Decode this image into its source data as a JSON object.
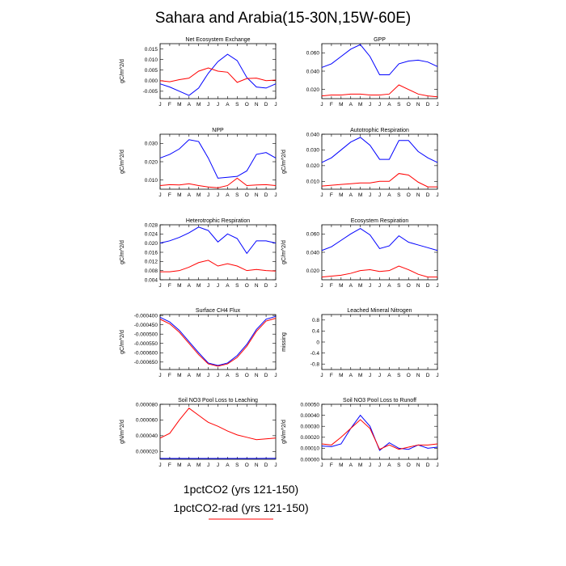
{
  "figure": {
    "title": "Sahara and Arabia(15-30N,15W-60E)",
    "month_labels": [
      "J",
      "F",
      "M",
      "A",
      "M",
      "J",
      "J",
      "A",
      "S",
      "O",
      "N",
      "D",
      "J"
    ]
  },
  "legend": {
    "items": [
      {
        "label": "1pctCO2 (yrs 121-150)",
        "color": "#0000ff"
      },
      {
        "label": "1pctCO2-rad (yrs 121-150)",
        "color": "#ff0000"
      }
    ]
  },
  "colors": {
    "series_a": "#0000ff",
    "series_b": "#ff0000",
    "axes": "#000000"
  },
  "chart_data": [
    {
      "type": "line",
      "title": "Net Ecosystem Exchange",
      "ylabel": "gC/m^2/d",
      "ylim": [
        -0.0085,
        0.0175
      ],
      "yticks": [
        -0.005,
        0.0,
        0.005,
        0.01,
        0.015
      ],
      "yticklabels": [
        "-0.005",
        "0.000",
        "0.005",
        "0.010",
        "0.015"
      ],
      "x": [
        "J",
        "F",
        "M",
        "A",
        "M",
        "J",
        "J",
        "A",
        "S",
        "O",
        "N",
        "D",
        "J"
      ],
      "series": [
        {
          "color": "#0000ff",
          "values": [
            -0.0015,
            -0.003,
            -0.005,
            -0.007,
            -0.0035,
            0.0035,
            0.009,
            0.0125,
            0.0095,
            0.0015,
            -0.003,
            -0.0035,
            -0.0015
          ]
        },
        {
          "color": "#ff0000",
          "values": [
            0.0,
            -0.0005,
            0.0005,
            0.0012,
            0.0045,
            0.006,
            0.0045,
            0.004,
            -0.0008,
            0.001,
            0.0012,
            0.0,
            0.0003
          ]
        }
      ]
    },
    {
      "type": "line",
      "title": "GPP",
      "ylabel": "",
      "ylim": [
        0.01,
        0.07
      ],
      "yticks": [
        0.02,
        0.04,
        0.06
      ],
      "yticklabels": [
        "0.020",
        "0.040",
        "0.060"
      ],
      "x": [
        "J",
        "F",
        "M",
        "A",
        "M",
        "J",
        "J",
        "A",
        "S",
        "O",
        "N",
        "D",
        "J"
      ],
      "series": [
        {
          "color": "#0000ff",
          "values": [
            0.044,
            0.048,
            0.056,
            0.064,
            0.069,
            0.056,
            0.036,
            0.036,
            0.048,
            0.051,
            0.052,
            0.05,
            0.045
          ]
        },
        {
          "color": "#ff0000",
          "values": [
            0.013,
            0.014,
            0.014,
            0.015,
            0.015,
            0.014,
            0.014,
            0.015,
            0.025,
            0.02,
            0.015,
            0.013,
            0.012
          ]
        }
      ]
    },
    {
      "type": "line",
      "title": "NPP",
      "ylabel": "gC/m^2/d",
      "ylim": [
        0.005,
        0.035
      ],
      "yticks": [
        0.01,
        0.02,
        0.03
      ],
      "yticklabels": [
        "0.010",
        "0.020",
        "0.030"
      ],
      "x": [
        "J",
        "F",
        "M",
        "A",
        "M",
        "J",
        "J",
        "A",
        "S",
        "O",
        "N",
        "D",
        "J"
      ],
      "series": [
        {
          "color": "#0000ff",
          "values": [
            0.022,
            0.024,
            0.027,
            0.032,
            0.031,
            0.022,
            0.011,
            0.0115,
            0.012,
            0.015,
            0.024,
            0.025,
            0.022
          ]
        },
        {
          "color": "#ff0000",
          "values": [
            0.007,
            0.0075,
            0.0073,
            0.008,
            0.007,
            0.0062,
            0.0058,
            0.007,
            0.011,
            0.007,
            0.0073,
            0.0075,
            0.007
          ]
        }
      ]
    },
    {
      "type": "line",
      "title": "Autotrophic Respiration",
      "ylabel": "gC/m^2/d",
      "ylim": [
        0.005,
        0.04
      ],
      "yticks": [
        0.01,
        0.02,
        0.03,
        0.04
      ],
      "yticklabels": [
        "0.010",
        "0.020",
        "0.030",
        "0.040"
      ],
      "x": [
        "J",
        "F",
        "M",
        "A",
        "M",
        "J",
        "J",
        "A",
        "S",
        "O",
        "N",
        "D",
        "J"
      ],
      "series": [
        {
          "color": "#0000ff",
          "values": [
            0.022,
            0.025,
            0.03,
            0.035,
            0.038,
            0.033,
            0.024,
            0.024,
            0.036,
            0.036,
            0.029,
            0.025,
            0.022
          ]
        },
        {
          "color": "#ff0000",
          "values": [
            0.007,
            0.0075,
            0.008,
            0.0085,
            0.009,
            0.009,
            0.01,
            0.01,
            0.015,
            0.014,
            0.0095,
            0.0065,
            0.0065
          ]
        }
      ]
    },
    {
      "type": "line",
      "title": "Heterotrophic Respiration",
      "ylabel": "gC/m^2/d",
      "ylim": [
        0.004,
        0.028
      ],
      "yticks": [
        0.004,
        0.008,
        0.012,
        0.016,
        0.02,
        0.024,
        0.028
      ],
      "yticklabels": [
        "0.004",
        "0.008",
        "0.012",
        "0.016",
        "0.020",
        "0.024",
        "0.028"
      ],
      "x": [
        "J",
        "F",
        "M",
        "A",
        "M",
        "J",
        "J",
        "A",
        "S",
        "O",
        "N",
        "D",
        "J"
      ],
      "series": [
        {
          "color": "#0000ff",
          "values": [
            0.02,
            0.021,
            0.0225,
            0.0245,
            0.027,
            0.0255,
            0.0205,
            0.024,
            0.022,
            0.0155,
            0.021,
            0.021,
            0.02
          ]
        },
        {
          "color": "#ff0000",
          "values": [
            0.0075,
            0.0075,
            0.008,
            0.0095,
            0.0115,
            0.0125,
            0.01,
            0.011,
            0.01,
            0.008,
            0.0085,
            0.008,
            0.0078
          ]
        }
      ]
    },
    {
      "type": "line",
      "title": "Ecosystem Respiration",
      "ylabel": "gC/m^2/d",
      "ylim": [
        0.01,
        0.07
      ],
      "yticks": [
        0.02,
        0.04,
        0.06
      ],
      "yticklabels": [
        "0.020",
        "0.040",
        "0.060"
      ],
      "x": [
        "J",
        "F",
        "M",
        "A",
        "M",
        "J",
        "J",
        "A",
        "S",
        "O",
        "N",
        "D",
        "J"
      ],
      "series": [
        {
          "color": "#0000ff",
          "values": [
            0.042,
            0.046,
            0.053,
            0.06,
            0.066,
            0.059,
            0.044,
            0.047,
            0.058,
            0.051,
            0.048,
            0.045,
            0.042
          ]
        },
        {
          "color": "#ff0000",
          "values": [
            0.013,
            0.014,
            0.015,
            0.017,
            0.02,
            0.021,
            0.019,
            0.02,
            0.025,
            0.021,
            0.016,
            0.013,
            0.013
          ]
        }
      ]
    },
    {
      "type": "line",
      "title": "Surface CH4 Flux",
      "ylabel": "gC/m^2/d",
      "ylim": [
        -0.00069,
        -0.000395
      ],
      "yticks": [
        -0.0004,
        -0.00045,
        -0.0005,
        -0.00055,
        -0.0006,
        -0.00065
      ],
      "yticklabels": [
        "-0.000400",
        "-0.000450",
        "-0.000500",
        "-0.000550",
        "-0.000600",
        "-0.000650"
      ],
      "x": [
        "J",
        "F",
        "M",
        "A",
        "M",
        "J",
        "J",
        "A",
        "S",
        "O",
        "N",
        "D",
        "J"
      ],
      "series": [
        {
          "color": "#0000ff",
          "values": [
            -0.00041,
            -0.000435,
            -0.00048,
            -0.00054,
            -0.0006,
            -0.000655,
            -0.000668,
            -0.000655,
            -0.000615,
            -0.000555,
            -0.000475,
            -0.00042,
            -0.000405
          ]
        },
        {
          "color": "#ff0000",
          "values": [
            -0.00042,
            -0.000445,
            -0.00049,
            -0.00055,
            -0.00061,
            -0.00066,
            -0.000672,
            -0.00066,
            -0.000625,
            -0.000565,
            -0.000485,
            -0.00043,
            -0.000415
          ]
        }
      ]
    },
    {
      "type": "line",
      "title": "Leached Mineral Nitrogen",
      "ylabel": "missing",
      "ylim": [
        -1.0,
        1.0
      ],
      "yticks": [
        -0.8,
        -0.4,
        0.0,
        0.4,
        0.8
      ],
      "yticklabels": [
        "-0.8",
        "-0.4",
        "0",
        "0.4",
        "0.8"
      ],
      "x": [
        "J",
        "F",
        "M",
        "A",
        "M",
        "J",
        "J",
        "A",
        "S",
        "O",
        "N",
        "D",
        "J"
      ],
      "series": []
    },
    {
      "type": "line",
      "title": "Soil NO3 Pool Loss to Leaching",
      "ylabel": "gN/m^2/d",
      "ylim": [
        1e-05,
        8e-05
      ],
      "yticks": [
        2e-05,
        4e-05,
        6e-05,
        8e-05
      ],
      "yticklabels": [
        "0.000020",
        "0.000040",
        "0.000060",
        "0.000080"
      ],
      "x": [
        "J",
        "F",
        "M",
        "A",
        "M",
        "J",
        "J",
        "A",
        "S",
        "O",
        "N",
        "D",
        "J"
      ],
      "series": [
        {
          "color": "#0000ff",
          "values": [
            1.1e-05,
            1.1e-05,
            1.1e-05,
            1.1e-05,
            1.1e-05,
            1.1e-05,
            1.1e-05,
            1.1e-05,
            1.1e-05,
            1.1e-05,
            1.1e-05,
            1.12e-05,
            1.12e-05
          ]
        },
        {
          "color": "#ff0000",
          "values": [
            3.7e-05,
            4.3e-05,
            6e-05,
            7.5e-05,
            6.6e-05,
            5.7e-05,
            5.2e-05,
            4.6e-05,
            4.1e-05,
            3.8e-05,
            3.5e-05,
            3.6e-05,
            3.7e-05
          ]
        }
      ]
    },
    {
      "type": "line",
      "title": "Soil NO3 Pool Loss to Runoff",
      "ylabel": "gN/m^2/d",
      "ylim": [
        0.0,
        0.0005
      ],
      "yticks": [
        0.0,
        0.0001,
        0.0002,
        0.0003,
        0.0004,
        0.0005
      ],
      "yticklabels": [
        "0.00000",
        "0.00010",
        "0.00020",
        "0.00030",
        "0.00040",
        "0.00050"
      ],
      "x": [
        "J",
        "F",
        "M",
        "A",
        "M",
        "J",
        "J",
        "A",
        "S",
        "O",
        "N",
        "D",
        "J"
      ],
      "series": [
        {
          "color": "#0000ff",
          "values": [
            0.00012,
            0.000115,
            0.00014,
            0.00028,
            0.0004,
            0.0003,
            8e-05,
            0.00015,
            0.0001,
            9e-05,
            0.00013,
            0.0001,
            0.00011
          ]
        },
        {
          "color": "#ff0000",
          "values": [
            0.00014,
            0.00013,
            0.0002,
            0.00028,
            0.00036,
            0.00028,
            9e-05,
            0.00013,
            9e-05,
            0.00011,
            0.00013,
            0.00013,
            0.00014
          ]
        }
      ]
    }
  ]
}
